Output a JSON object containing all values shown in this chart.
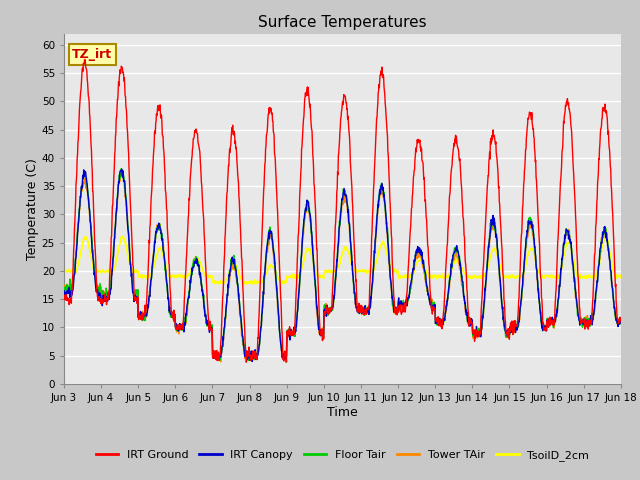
{
  "title": "Surface Temperatures",
  "xlabel": "Time",
  "ylabel": "Temperature (C)",
  "ylim": [
    0,
    62
  ],
  "yticks": [
    0,
    5,
    10,
    15,
    20,
    25,
    30,
    35,
    40,
    45,
    50,
    55,
    60
  ],
  "fig_bg_color": "#c8c8c8",
  "plot_bg": "#e8e8e8",
  "series_colors": {
    "IRT Ground": "#ff0000",
    "IRT Canopy": "#0000cc",
    "Floor Tair": "#00cc00",
    "Tower TAir": "#ff8800",
    "TsoilD_2cm": "#ffff00"
  },
  "annotation_text": "TZ_irt",
  "annotation_color": "#cc0000",
  "annotation_bg": "#ffffaa",
  "annotation_border": "#aa8800",
  "x_tick_labels": [
    "Jun 3",
    "Jun 4",
    "Jun 5",
    "Jun 6",
    "Jun 7",
    "Jun 8",
    "Jun 9",
    "Jun 10",
    "Jun 11",
    "Jun 12",
    "Jun 13",
    "Jun 14",
    "Jun 15",
    "Jun 16",
    "Jun 17",
    "Jun 18"
  ],
  "n_days": 15,
  "points_per_day": 96,
  "irt_ground_peaks": [
    57,
    56,
    49,
    45,
    45,
    49,
    52,
    51,
    55,
    43,
    43,
    44,
    48,
    50,
    49
  ],
  "irt_ground_mins": [
    15,
    15,
    12,
    10,
    5,
    5,
    9,
    13,
    13,
    13,
    11,
    9,
    10,
    11,
    11
  ],
  "canopy_peaks": [
    37,
    38,
    28,
    22,
    22,
    27,
    32,
    34,
    35,
    24,
    24,
    29,
    29,
    27,
    27
  ],
  "canopy_mins": [
    16,
    15,
    12,
    10,
    5,
    5,
    9,
    13,
    13,
    14,
    11,
    9,
    10,
    11,
    11
  ],
  "floor_peaks": [
    37,
    38,
    28,
    22,
    22,
    27,
    32,
    34,
    35,
    24,
    24,
    29,
    29,
    27,
    27
  ],
  "floor_mins": [
    17,
    16,
    12,
    10,
    5,
    5,
    9,
    13,
    13,
    14,
    11,
    9,
    10,
    11,
    11
  ],
  "tower_peaks": [
    36,
    37,
    28,
    22,
    21,
    26,
    31,
    33,
    34,
    23,
    23,
    28,
    28,
    27,
    27
  ],
  "tower_mins": [
    17,
    16,
    12,
    10,
    5,
    5,
    9,
    13,
    13,
    14,
    11,
    9,
    10,
    11,
    11
  ],
  "tsoil_peaks": [
    26,
    26,
    24,
    22,
    21,
    21,
    24,
    24,
    25,
    22,
    22,
    24,
    24,
    25,
    26
  ],
  "tsoil_mins": [
    20,
    20,
    19,
    19,
    18,
    18,
    19,
    20,
    20,
    19,
    19,
    19,
    19,
    19,
    19
  ]
}
